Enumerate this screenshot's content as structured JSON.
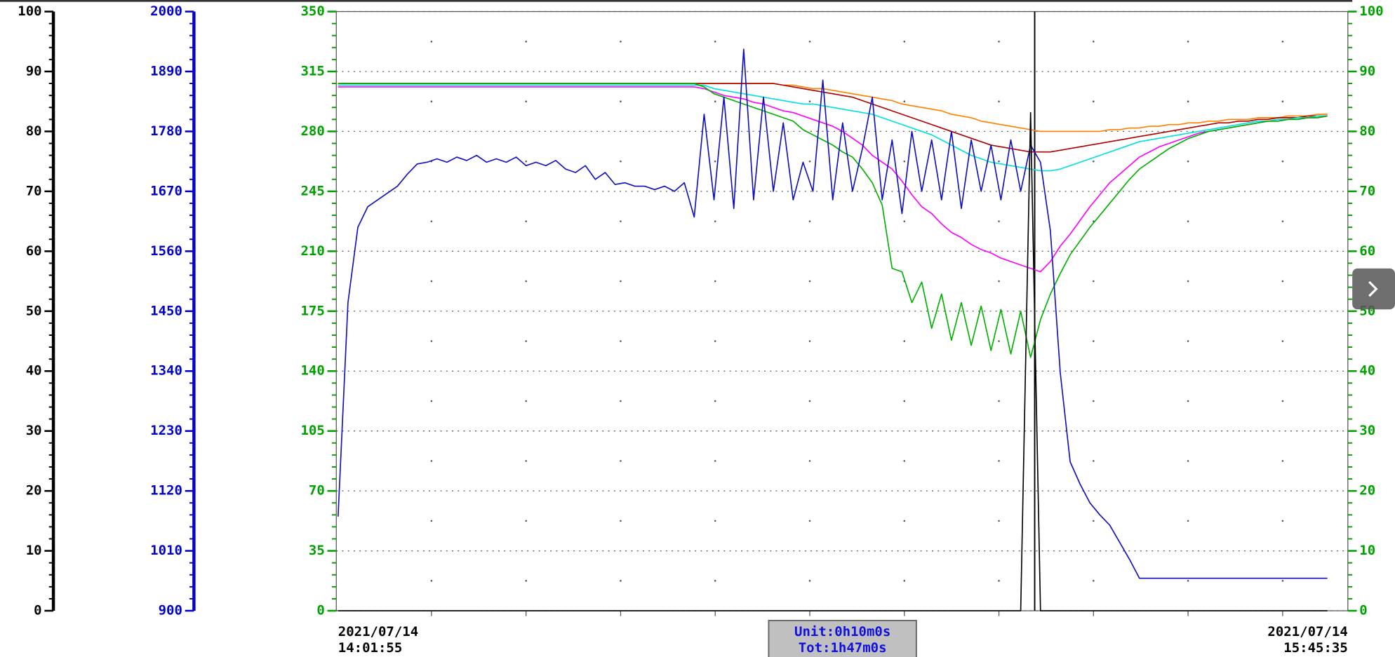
{
  "chart_data": {
    "type": "line",
    "ylim": [
      0,
      350
    ],
    "yticks": [
      0,
      35,
      70,
      105,
      140,
      175,
      210,
      245,
      280,
      315,
      350
    ],
    "y_color": "#00a000",
    "grid": true,
    "other_axes": [
      {
        "color": "#000000",
        "ylim": [
          0,
          100
        ],
        "yticks": [
          0,
          10,
          20,
          30,
          40,
          50,
          60,
          70,
          80,
          90,
          100
        ]
      },
      {
        "color": "#0000c8",
        "ylim": [
          900,
          2000
        ],
        "yticks": [
          900,
          1010,
          1120,
          1230,
          1340,
          1450,
          1560,
          1670,
          1780,
          1890,
          2000
        ]
      },
      {
        "color": "#00a000",
        "ylim": [
          0,
          100
        ],
        "yticks": [
          0,
          10,
          20,
          30,
          40,
          50,
          60,
          70,
          80,
          90,
          100
        ]
      }
    ],
    "x_labels": {
      "start": {
        "date": "2021/07/14",
        "time": "14:01:55"
      },
      "end": {
        "date": "2021/07/14",
        "time": "15:45:35"
      }
    },
    "unit": "Unit:0h10m0s",
    "total": "Tot:1h47m0s",
    "series": [
      {
        "color": "#ff8000",
        "values": [
          308,
          308,
          308,
          308,
          308,
          308,
          308,
          308,
          308,
          308,
          308,
          308,
          308,
          308,
          308,
          308,
          308,
          308,
          308,
          308,
          308,
          308,
          308,
          308,
          308,
          308,
          308,
          308,
          308,
          308,
          308,
          308,
          308,
          308,
          308,
          308,
          308,
          308,
          308,
          308,
          308,
          308,
          308,
          308,
          308,
          307,
          307,
          306,
          305,
          305,
          304,
          303,
          302,
          301,
          300,
          299,
          298,
          296,
          295,
          294,
          293,
          292,
          290,
          289,
          288,
          286,
          285,
          284,
          283,
          282,
          281,
          280,
          280,
          280,
          280,
          280,
          280,
          280,
          281,
          281,
          282,
          282,
          283,
          283,
          284,
          284,
          285,
          285,
          286,
          286,
          287,
          287,
          287,
          288,
          288,
          288,
          289,
          289,
          289,
          290,
          290
        ]
      },
      {
        "color": "#b00000",
        "values": [
          308,
          308,
          308,
          308,
          308,
          308,
          308,
          308,
          308,
          308,
          308,
          308,
          308,
          308,
          308,
          308,
          308,
          308,
          308,
          308,
          308,
          308,
          308,
          308,
          308,
          308,
          308,
          308,
          308,
          308,
          308,
          308,
          308,
          308,
          308,
          308,
          308,
          308,
          308,
          308,
          308,
          308,
          308,
          308,
          308,
          307,
          306,
          305,
          304,
          303,
          302,
          301,
          300,
          298,
          296,
          294,
          292,
          290,
          288,
          286,
          284,
          282,
          280,
          278,
          276,
          274,
          272,
          271,
          270,
          269,
          268,
          268,
          268,
          269,
          270,
          271,
          272,
          273,
          274,
          275,
          276,
          277,
          278,
          279,
          280,
          281,
          282,
          283,
          284,
          285,
          285,
          286,
          286,
          287,
          287,
          288,
          288,
          288,
          289,
          289,
          289
        ]
      },
      {
        "color": "#00e0e0",
        "values": [
          307,
          307,
          307,
          307,
          307,
          307,
          307,
          307,
          307,
          307,
          307,
          307,
          307,
          307,
          307,
          307,
          307,
          307,
          307,
          307,
          307,
          307,
          307,
          307,
          307,
          307,
          307,
          307,
          307,
          307,
          307,
          307,
          307,
          307,
          307,
          307,
          307,
          307,
          305,
          304,
          303,
          302,
          301,
          300,
          299,
          298,
          297,
          296,
          296,
          295,
          294,
          293,
          292,
          291,
          290,
          288,
          286,
          284,
          282,
          280,
          278,
          275,
          272,
          269,
          266,
          264,
          262,
          261,
          260,
          259,
          258,
          257,
          257,
          258,
          260,
          262,
          264,
          266,
          268,
          270,
          272,
          274,
          275,
          276,
          277,
          278,
          279,
          280,
          281,
          282,
          283,
          284,
          285,
          286,
          286,
          287,
          287,
          288,
          288,
          289,
          289
        ]
      },
      {
        "color": "#ff00ff",
        "values": [
          306,
          306,
          306,
          306,
          306,
          306,
          306,
          306,
          306,
          306,
          306,
          306,
          306,
          306,
          306,
          306,
          306,
          306,
          306,
          306,
          306,
          306,
          306,
          306,
          306,
          306,
          306,
          306,
          306,
          306,
          306,
          306,
          306,
          306,
          306,
          306,
          306,
          305,
          303,
          301,
          300,
          299,
          297,
          296,
          294,
          292,
          291,
          289,
          287,
          285,
          283,
          280,
          276,
          272,
          266,
          262,
          258,
          251,
          243,
          236,
          232,
          226,
          221,
          218,
          214,
          211,
          209,
          206,
          204,
          202,
          200,
          198,
          204,
          213,
          220,
          228,
          236,
          243,
          250,
          255,
          260,
          265,
          268,
          271,
          273,
          275,
          277,
          279,
          280,
          281,
          282,
          283,
          284,
          285,
          286,
          286,
          287,
          287,
          288,
          288,
          289
        ]
      },
      {
        "color": "#00b000",
        "values": [
          308,
          308,
          308,
          308,
          308,
          308,
          308,
          308,
          308,
          308,
          308,
          308,
          308,
          308,
          308,
          308,
          308,
          308,
          308,
          308,
          308,
          308,
          308,
          308,
          308,
          308,
          308,
          308,
          308,
          308,
          308,
          308,
          308,
          308,
          308,
          308,
          308,
          306,
          302,
          300,
          298,
          296,
          294,
          292,
          290,
          288,
          286,
          281,
          278,
          275,
          272,
          268,
          265,
          258,
          250,
          237,
          200,
          198,
          180,
          192,
          165,
          185,
          158,
          180,
          155,
          178,
          152,
          176,
          150,
          175,
          148,
          170,
          185,
          197,
          208,
          216,
          224,
          231,
          238,
          245,
          252,
          258,
          262,
          266,
          270,
          273,
          276,
          278,
          280,
          281,
          282,
          283,
          284,
          285,
          286,
          286,
          287,
          287,
          288,
          288,
          289
        ]
      },
      {
        "color": "#1010c0",
        "values": [
          55,
          180,
          224,
          236,
          240,
          244,
          248,
          255,
          261,
          262,
          264,
          262,
          265,
          263,
          266,
          262,
          264,
          262,
          265,
          260,
          262,
          260,
          263,
          258,
          256,
          260,
          252,
          256,
          249,
          250,
          248,
          248,
          246,
          248,
          245,
          250,
          230,
          290,
          240,
          300,
          235,
          328,
          240,
          300,
          245,
          285,
          240,
          262,
          245,
          310,
          240,
          285,
          245,
          270,
          300,
          240,
          275,
          232,
          280,
          245,
          275,
          240,
          280,
          235,
          275,
          245,
          272,
          240,
          275,
          245,
          272,
          262,
          222,
          139,
          87,
          74,
          63,
          56,
          50,
          40,
          30,
          19,
          19,
          19,
          19,
          19,
          19,
          19,
          19,
          19,
          19,
          19,
          19,
          19,
          19,
          19,
          19,
          19,
          19,
          19,
          19
        ]
      },
      {
        "color": "#000000",
        "values": [
          0,
          0,
          0,
          0,
          0,
          0,
          0,
          0,
          0,
          0,
          0,
          0,
          0,
          0,
          0,
          0,
          0,
          0,
          0,
          0,
          0,
          0,
          0,
          0,
          0,
          0,
          0,
          0,
          0,
          0,
          0,
          0,
          0,
          0,
          0,
          0,
          0,
          0,
          0,
          0,
          0,
          0,
          0,
          0,
          0,
          0,
          0,
          0,
          0,
          0,
          0,
          0,
          0,
          0,
          0,
          0,
          0,
          0,
          0,
          0,
          0,
          0,
          0,
          0,
          0,
          0,
          0,
          0,
          0,
          0,
          291,
          0,
          0,
          0,
          0,
          0,
          0,
          0,
          0,
          0,
          0,
          0,
          0,
          0,
          0,
          0,
          0,
          0,
          0,
          0,
          0,
          0,
          0,
          0,
          0,
          0,
          0,
          0,
          0,
          0,
          0
        ]
      }
    ]
  }
}
